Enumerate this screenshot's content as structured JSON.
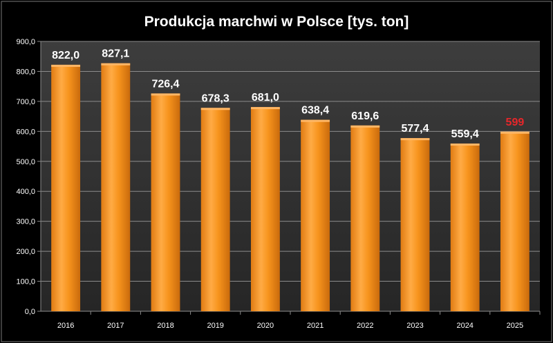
{
  "chart_data": {
    "type": "bar",
    "title": "Produkcja marchwi w Polsce [tys. ton]",
    "xlabel": "",
    "ylabel": "",
    "ylim": [
      0,
      900
    ],
    "ytick_step": 100,
    "ytick_labels": [
      "0,0",
      "100,0",
      "200,0",
      "300,0",
      "400,0",
      "500,0",
      "600,0",
      "700,0",
      "800,0",
      "900,0"
    ],
    "grid": true,
    "categories": [
      "2016",
      "2017",
      "2018",
      "2019",
      "2020",
      "2021",
      "2022",
      "2023",
      "2024",
      "2025"
    ],
    "values": [
      822.0,
      827.1,
      726.4,
      678.3,
      681.0,
      638.4,
      619.6,
      577.4,
      559.4,
      599
    ],
    "data_labels": [
      "822,0",
      "827,1",
      "726,4",
      "678,3",
      "681,0",
      "638,4",
      "619,6",
      "577,4",
      "559,4",
      "599"
    ],
    "label_colors": [
      "#ffffff",
      "#ffffff",
      "#ffffff",
      "#ffffff",
      "#ffffff",
      "#ffffff",
      "#ffffff",
      "#ffffff",
      "#ffffff",
      "#e8262a"
    ]
  },
  "colors": {
    "background": "#000000",
    "plot_area": "#333333",
    "gridline": "#8c8c8c",
    "bar_fill": "#f7941d",
    "bar_highlight": "#ffb766",
    "text": "#ffffff"
  }
}
